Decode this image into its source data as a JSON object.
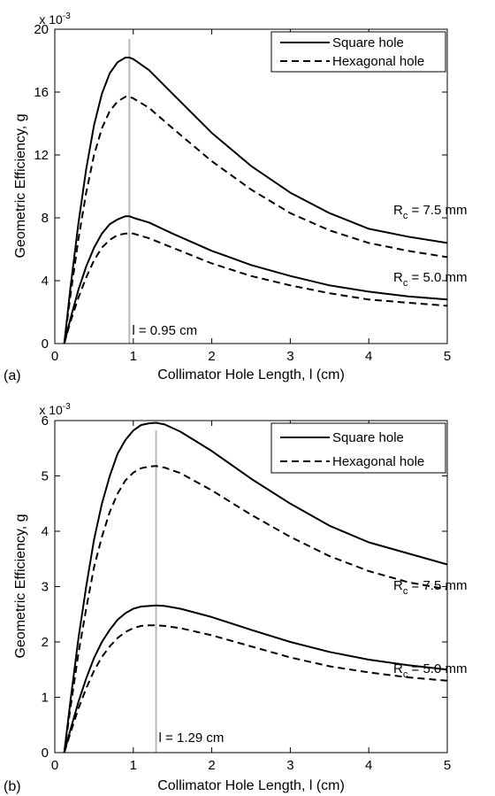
{
  "chart_data": [
    {
      "type": "line",
      "panel_label": "(a)",
      "xlabel": "Collimator Hole Length, l (cm)",
      "ylabel": "Geometric Efficiency, g",
      "y_multiplier": {
        "base": "x 10",
        "exponent": "-3"
      },
      "xlim": [
        0,
        5
      ],
      "ylim": [
        0,
        20
      ],
      "xticks": [
        "0",
        "1",
        "2",
        "3",
        "4",
        "5"
      ],
      "yticks": [
        "0",
        "4",
        "8",
        "12",
        "16",
        "20"
      ],
      "grid": false,
      "legend": [
        "Square hole",
        "Hexagonal hole"
      ],
      "legend_position": "top-right",
      "vline": {
        "x": 0.95,
        "label": "l = 0.95 cm"
      },
      "curve_labels": [
        {
          "prefix": "R",
          "sub": "c",
          "suffix": " = 7.5 mm"
        },
        {
          "prefix": "R",
          "sub": "c",
          "suffix": " = 5.0 mm"
        }
      ],
      "x": [
        0.12,
        0.2,
        0.3,
        0.4,
        0.5,
        0.6,
        0.7,
        0.8,
        0.9,
        0.95,
        1.0,
        1.2,
        1.5,
        2.0,
        2.5,
        3.0,
        3.5,
        4.0,
        4.5,
        5.0
      ],
      "series": [
        {
          "name": "Square hole",
          "group": "R_c = 7.5 mm",
          "style": "solid",
          "values": [
            0.0,
            3.6,
            7.6,
            11.1,
            13.9,
            15.9,
            17.2,
            17.9,
            18.2,
            18.2,
            18.1,
            17.4,
            15.9,
            13.4,
            11.3,
            9.6,
            8.3,
            7.3,
            6.8,
            6.4
          ]
        },
        {
          "name": "Hexagonal hole",
          "group": "R_c = 7.5 mm",
          "style": "dashed",
          "values": [
            0.0,
            3.1,
            6.6,
            9.6,
            12.0,
            13.7,
            14.8,
            15.4,
            15.7,
            15.7,
            15.6,
            15.0,
            13.7,
            11.6,
            9.8,
            8.3,
            7.2,
            6.4,
            5.9,
            5.5
          ]
        },
        {
          "name": "Square hole",
          "group": "R_c = 5.0 mm",
          "style": "solid",
          "values": [
            0.0,
            1.6,
            3.4,
            4.9,
            6.1,
            7.0,
            7.6,
            7.9,
            8.1,
            8.1,
            8.0,
            7.7,
            7.0,
            5.9,
            5.0,
            4.3,
            3.7,
            3.3,
            3.0,
            2.8
          ]
        },
        {
          "name": "Hexagonal hole",
          "group": "R_c = 5.0 mm",
          "style": "dashed",
          "values": [
            0.0,
            1.4,
            2.9,
            4.2,
            5.3,
            6.1,
            6.6,
            6.9,
            7.0,
            7.0,
            7.0,
            6.7,
            6.1,
            5.1,
            4.3,
            3.7,
            3.2,
            2.8,
            2.6,
            2.4
          ]
        }
      ]
    },
    {
      "type": "line",
      "panel_label": "(b)",
      "xlabel": "Collimator Hole Length, l (cm)",
      "ylabel": "Geometric Efficiency, g",
      "y_multiplier": {
        "base": "x 10",
        "exponent": "-3"
      },
      "xlim": [
        0,
        5
      ],
      "ylim": [
        0,
        6
      ],
      "xticks": [
        "0",
        "1",
        "2",
        "3",
        "4",
        "5"
      ],
      "yticks": [
        "0",
        "1",
        "2",
        "3",
        "4",
        "5",
        "6"
      ],
      "grid": false,
      "legend": [
        "Square hole",
        "Hexagonal hole"
      ],
      "legend_position": "top-right",
      "vline": {
        "x": 1.29,
        "label": "l = 1.29 cm"
      },
      "curve_labels": [
        {
          "prefix": "R",
          "sub": "c",
          "suffix": " = 7.5 mm"
        },
        {
          "prefix": "R",
          "sub": "c",
          "suffix": " = 5.0 mm"
        }
      ],
      "x": [
        0.12,
        0.2,
        0.3,
        0.4,
        0.5,
        0.6,
        0.7,
        0.8,
        0.9,
        1.0,
        1.1,
        1.2,
        1.29,
        1.4,
        1.6,
        2.0,
        2.5,
        3.0,
        3.5,
        4.0,
        4.5,
        5.0
      ],
      "series": [
        {
          "name": "Square hole",
          "group": "R_c = 7.5 mm",
          "style": "solid",
          "values": [
            0.0,
            0.95,
            2.05,
            3.0,
            3.85,
            4.5,
            5.0,
            5.4,
            5.65,
            5.82,
            5.92,
            5.95,
            5.96,
            5.93,
            5.8,
            5.45,
            4.95,
            4.5,
            4.1,
            3.8,
            3.6,
            3.4
          ]
        },
        {
          "name": "Hexagonal hole",
          "group": "R_c = 7.5 mm",
          "style": "dashed",
          "values": [
            0.0,
            0.82,
            1.78,
            2.6,
            3.35,
            3.9,
            4.35,
            4.68,
            4.92,
            5.06,
            5.14,
            5.17,
            5.18,
            5.15,
            5.05,
            4.74,
            4.3,
            3.9,
            3.55,
            3.28,
            3.08,
            2.95
          ]
        },
        {
          "name": "Square hole",
          "group": "R_c = 5.0 mm",
          "style": "solid",
          "values": [
            0.0,
            0.42,
            0.91,
            1.34,
            1.71,
            2.0,
            2.22,
            2.4,
            2.52,
            2.6,
            2.64,
            2.65,
            2.66,
            2.65,
            2.6,
            2.45,
            2.22,
            2.0,
            1.82,
            1.68,
            1.58,
            1.5
          ]
        },
        {
          "name": "Hexagonal hole",
          "group": "R_c = 5.0 mm",
          "style": "dashed",
          "values": [
            0.0,
            0.36,
            0.79,
            1.16,
            1.48,
            1.73,
            1.92,
            2.07,
            2.18,
            2.25,
            2.29,
            2.3,
            2.3,
            2.29,
            2.25,
            2.12,
            1.92,
            1.72,
            1.56,
            1.45,
            1.36,
            1.3
          ]
        }
      ]
    }
  ]
}
